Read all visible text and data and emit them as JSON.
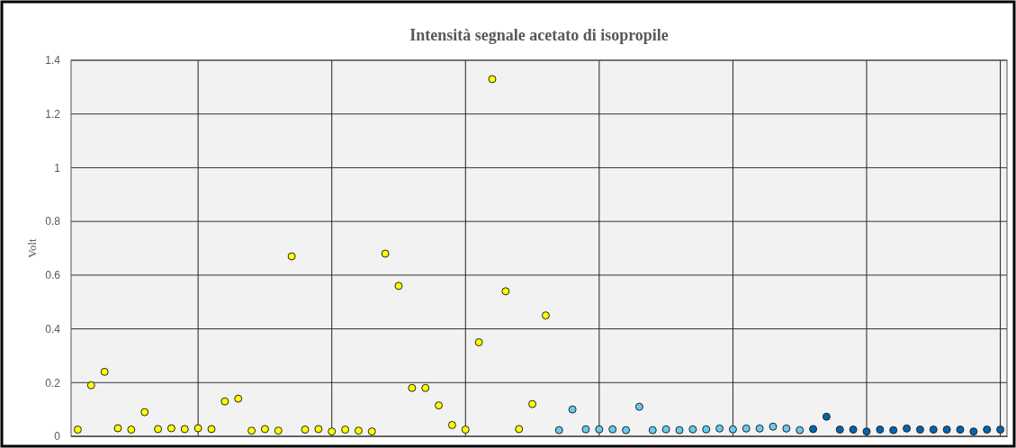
{
  "chart_data": {
    "type": "scatter",
    "title": "Intensità segnale acetato di isopropile",
    "ylabel": "Volt",
    "categories": [
      null,
      null,
      null,
      null,
      null,
      null,
      null,
      null,
      null,
      null,
      null,
      null,
      null,
      null,
      null,
      null,
      null,
      null,
      null,
      null,
      null,
      null,
      null,
      null,
      null,
      null,
      null,
      null,
      null,
      null,
      null,
      null,
      null,
      null,
      null,
      null,
      null,
      null,
      null,
      null,
      null,
      null,
      null,
      null,
      null,
      null,
      null,
      null,
      null,
      null,
      null,
      null,
      null,
      null,
      null,
      null,
      null,
      null,
      null,
      null,
      null,
      null,
      null,
      null,
      null,
      null,
      null,
      null,
      null,
      null
    ],
    "ylim": [
      0,
      1.4
    ],
    "yticks": [
      0,
      0.2,
      0.4,
      0.6,
      0.8,
      1,
      1.2,
      1.4
    ],
    "grid": true,
    "marker": "circle",
    "series": [
      {
        "color": "#ffff00",
        "values": [
          0.025,
          0.19,
          0.24,
          0.03,
          0.025,
          0.09,
          0.027,
          0.03,
          0.027,
          0.03,
          0.027,
          0.13,
          0.14,
          0.021,
          0.027,
          0.021,
          0.67,
          0.025,
          0.027,
          0.018,
          0.025,
          0.021,
          0.018,
          0.68,
          0.56,
          0.18,
          0.18,
          0.115,
          0.042,
          0.025,
          0.35,
          1.33,
          0.54,
          0.027,
          0.12,
          0.45,
          null,
          null,
          null,
          null,
          null,
          null,
          null,
          null,
          null,
          null,
          null,
          null,
          null,
          null,
          null,
          null,
          null,
          null,
          null,
          null,
          null,
          null,
          null,
          null,
          null,
          null,
          null,
          null,
          null,
          null,
          null,
          null,
          null,
          null
        ]
      },
      {
        "color": "#66ccee",
        "values": [
          null,
          null,
          null,
          null,
          null,
          null,
          null,
          null,
          null,
          null,
          null,
          null,
          null,
          null,
          null,
          null,
          null,
          null,
          null,
          null,
          null,
          null,
          null,
          null,
          null,
          null,
          null,
          null,
          null,
          null,
          null,
          null,
          null,
          null,
          null,
          null,
          0.023,
          0.1,
          0.026,
          0.026,
          0.026,
          0.023,
          0.11,
          0.023,
          0.026,
          0.023,
          0.026,
          0.026,
          0.029,
          0.026,
          0.029,
          0.029,
          0.036,
          0.029,
          0.023,
          null,
          null,
          null,
          null,
          null,
          null,
          null,
          null,
          null,
          null,
          null,
          null,
          null,
          null,
          null
        ]
      },
      {
        "color": "#0066b3",
        "values": [
          null,
          null,
          null,
          null,
          null,
          null,
          null,
          null,
          null,
          null,
          null,
          null,
          null,
          null,
          null,
          null,
          null,
          null,
          null,
          null,
          null,
          null,
          null,
          null,
          null,
          null,
          null,
          null,
          null,
          null,
          null,
          null,
          null,
          null,
          null,
          null,
          null,
          null,
          null,
          null,
          null,
          null,
          null,
          null,
          null,
          null,
          null,
          null,
          null,
          null,
          null,
          null,
          null,
          null,
          null,
          0.027,
          0.073,
          0.025,
          0.025,
          0.018,
          0.025,
          0.023,
          0.029,
          0.025,
          0.025,
          0.025,
          0.025,
          0.018,
          0.025,
          0.025
        ]
      }
    ]
  }
}
